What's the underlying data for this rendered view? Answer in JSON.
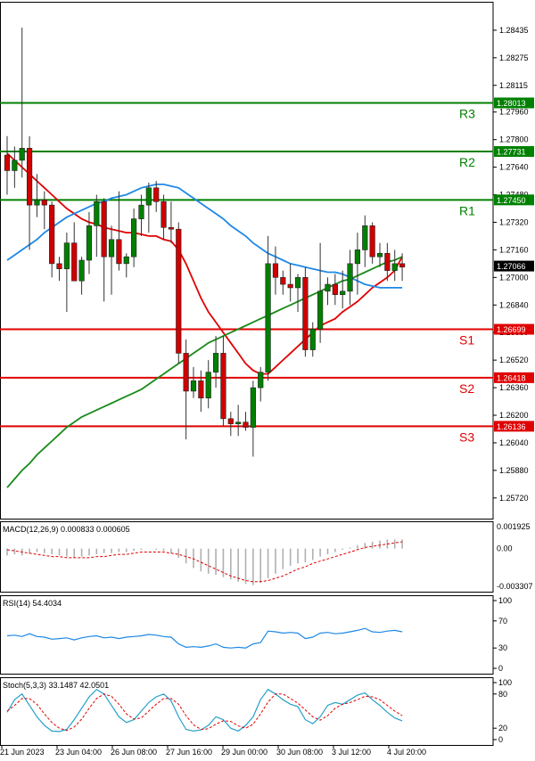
{
  "chart_data": {
    "type": "candlestick",
    "price_axis": {
      "ylim": [
        1.256,
        1.286
      ],
      "ticks": [
        "1.28435",
        "1.28275",
        "1.28115",
        "1.27960",
        "1.27800",
        "1.27640",
        "1.27480",
        "1.27320",
        "1.27160",
        "1.27000",
        "1.26840",
        "1.26680",
        "1.26520",
        "1.26360",
        "1.26200",
        "1.26040",
        "1.25880",
        "1.25720"
      ],
      "current_price": "1.27066"
    },
    "levels": [
      {
        "name": "R3",
        "value": 1.28013,
        "label": "1.28013",
        "color": "#008000"
      },
      {
        "name": "R2",
        "value": 1.27731,
        "label": "1.27731",
        "color": "#008000"
      },
      {
        "name": "R1",
        "value": 1.2745,
        "label": "1.27450",
        "color": "#008000"
      },
      {
        "name": "S1",
        "value": 1.26699,
        "label": "1.26699",
        "color": "#e00000"
      },
      {
        "name": "S2",
        "value": 1.26418,
        "label": "1.26418",
        "color": "#e00000"
      },
      {
        "name": "S3",
        "value": 1.26136,
        "label": "1.26136",
        "color": "#e00000"
      }
    ],
    "candles": [
      {
        "o": 1.2771,
        "h": 1.2782,
        "l": 1.2748,
        "c": 1.2762
      },
      {
        "o": 1.2762,
        "h": 1.2776,
        "l": 1.2752,
        "c": 1.2768
      },
      {
        "o": 1.2768,
        "h": 1.2845,
        "l": 1.2758,
        "c": 1.2775
      },
      {
        "o": 1.2775,
        "h": 1.2782,
        "l": 1.2716,
        "c": 1.2742
      },
      {
        "o": 1.2742,
        "h": 1.276,
        "l": 1.2735,
        "c": 1.2745
      },
      {
        "o": 1.2745,
        "h": 1.275,
        "l": 1.2728,
        "c": 1.2742
      },
      {
        "o": 1.2742,
        "h": 1.2744,
        "l": 1.27,
        "c": 1.2708
      },
      {
        "o": 1.2708,
        "h": 1.2712,
        "l": 1.2698,
        "c": 1.2705
      },
      {
        "o": 1.2705,
        "h": 1.2726,
        "l": 1.268,
        "c": 1.272
      },
      {
        "o": 1.272,
        "h": 1.2732,
        "l": 1.27,
        "c": 1.2698
      },
      {
        "o": 1.2698,
        "h": 1.2712,
        "l": 1.269,
        "c": 1.271
      },
      {
        "o": 1.271,
        "h": 1.2738,
        "l": 1.2702,
        "c": 1.273
      },
      {
        "o": 1.273,
        "h": 1.2748,
        "l": 1.2712,
        "c": 1.2744
      },
      {
        "o": 1.2744,
        "h": 1.2746,
        "l": 1.2686,
        "c": 1.2712
      },
      {
        "o": 1.2712,
        "h": 1.273,
        "l": 1.269,
        "c": 1.2722
      },
      {
        "o": 1.2722,
        "h": 1.275,
        "l": 1.2704,
        "c": 1.2708
      },
      {
        "o": 1.2708,
        "h": 1.2714,
        "l": 1.27,
        "c": 1.2712
      },
      {
        "o": 1.2712,
        "h": 1.274,
        "l": 1.2706,
        "c": 1.2734
      },
      {
        "o": 1.2734,
        "h": 1.2748,
        "l": 1.2724,
        "c": 1.2742
      },
      {
        "o": 1.2742,
        "h": 1.2755,
        "l": 1.2726,
        "c": 1.2752
      },
      {
        "o": 1.2752,
        "h": 1.2756,
        "l": 1.2738,
        "c": 1.2744
      },
      {
        "o": 1.2744,
        "h": 1.2748,
        "l": 1.2722,
        "c": 1.2729
      },
      {
        "o": 1.2729,
        "h": 1.2744,
        "l": 1.272,
        "c": 1.2728
      },
      {
        "o": 1.2728,
        "h": 1.2732,
        "l": 1.265,
        "c": 1.2656
      },
      {
        "o": 1.2656,
        "h": 1.2664,
        "l": 1.2606,
        "c": 1.2634
      },
      {
        "o": 1.2634,
        "h": 1.2648,
        "l": 1.263,
        "c": 1.264
      },
      {
        "o": 1.264,
        "h": 1.2646,
        "l": 1.2622,
        "c": 1.263
      },
      {
        "o": 1.263,
        "h": 1.2652,
        "l": 1.2624,
        "c": 1.2645
      },
      {
        "o": 1.2645,
        "h": 1.2666,
        "l": 1.2636,
        "c": 1.2656
      },
      {
        "o": 1.2656,
        "h": 1.2666,
        "l": 1.2614,
        "c": 1.2618
      },
      {
        "o": 1.2618,
        "h": 1.2622,
        "l": 1.2608,
        "c": 1.2615
      },
      {
        "o": 1.2615,
        "h": 1.2626,
        "l": 1.2608,
        "c": 1.2616
      },
      {
        "o": 1.2616,
        "h": 1.2622,
        "l": 1.2611,
        "c": 1.2613
      },
      {
        "o": 1.2613,
        "h": 1.264,
        "l": 1.2596,
        "c": 1.2636
      },
      {
        "o": 1.2636,
        "h": 1.2648,
        "l": 1.2628,
        "c": 1.2645
      },
      {
        "o": 1.2645,
        "h": 1.2724,
        "l": 1.264,
        "c": 1.2708
      },
      {
        "o": 1.2708,
        "h": 1.2718,
        "l": 1.269,
        "c": 1.27
      },
      {
        "o": 1.27,
        "h": 1.2704,
        "l": 1.269,
        "c": 1.2696
      },
      {
        "o": 1.2696,
        "h": 1.2708,
        "l": 1.2686,
        "c": 1.2694
      },
      {
        "o": 1.2694,
        "h": 1.2702,
        "l": 1.268,
        "c": 1.27
      },
      {
        "o": 1.27,
        "h": 1.2706,
        "l": 1.2654,
        "c": 1.2658
      },
      {
        "o": 1.2658,
        "h": 1.2674,
        "l": 1.2654,
        "c": 1.267
      },
      {
        "o": 1.267,
        "h": 1.272,
        "l": 1.2662,
        "c": 1.2692
      },
      {
        "o": 1.2692,
        "h": 1.27,
        "l": 1.2684,
        "c": 1.2696
      },
      {
        "o": 1.2696,
        "h": 1.2702,
        "l": 1.2684,
        "c": 1.269
      },
      {
        "o": 1.269,
        "h": 1.2704,
        "l": 1.2682,
        "c": 1.2692
      },
      {
        "o": 1.2692,
        "h": 1.2716,
        "l": 1.2684,
        "c": 1.2708
      },
      {
        "o": 1.2708,
        "h": 1.2726,
        "l": 1.269,
        "c": 1.2716
      },
      {
        "o": 1.2716,
        "h": 1.2736,
        "l": 1.2706,
        "c": 1.273
      },
      {
        "o": 1.273,
        "h": 1.2732,
        "l": 1.2708,
        "c": 1.2712
      },
      {
        "o": 1.2712,
        "h": 1.272,
        "l": 1.2706,
        "c": 1.2714
      },
      {
        "o": 1.2714,
        "h": 1.272,
        "l": 1.2698,
        "c": 1.2704
      },
      {
        "o": 1.2704,
        "h": 1.2716,
        "l": 1.2698,
        "c": 1.2708
      },
      {
        "o": 1.2708,
        "h": 1.2714,
        "l": 1.2698,
        "c": 1.2706
      }
    ],
    "moving_averages": [
      {
        "color": "#e00000",
        "values": [
          1.2772,
          1.2768,
          1.2764,
          1.276,
          1.2756,
          1.2752,
          1.2748,
          1.2744,
          1.274,
          1.2737,
          1.2734,
          1.2732,
          1.2731,
          1.2729,
          1.2728,
          1.2727,
          1.2726,
          1.2726,
          1.2725,
          1.2724,
          1.2724,
          1.2722,
          1.2721,
          1.2716,
          1.2708,
          1.2698,
          1.2688,
          1.268,
          1.2674,
          1.2668,
          1.2662,
          1.2656,
          1.265,
          1.2646,
          1.2644,
          1.2644,
          1.2648,
          1.2652,
          1.2656,
          1.266,
          1.2664,
          1.2668,
          1.2672,
          1.2674,
          1.2676,
          1.268,
          1.2683,
          1.2686,
          1.269,
          1.2694,
          1.2697,
          1.27,
          1.2704,
          1.2712
        ]
      },
      {
        "color": "#1e88e5",
        "values": [
          1.271,
          1.2713,
          1.2716,
          1.2719,
          1.2722,
          1.2726,
          1.2729,
          1.2732,
          1.2735,
          1.2737,
          1.2739,
          1.2741,
          1.2743,
          1.2744,
          1.2746,
          1.2747,
          1.2748,
          1.275,
          1.2752,
          1.2753,
          1.2754,
          1.2754,
          1.2753,
          1.2752,
          1.2749,
          1.2746,
          1.2743,
          1.274,
          1.2737,
          1.2734,
          1.273,
          1.2727,
          1.2724,
          1.272,
          1.2717,
          1.2714,
          1.2712,
          1.271,
          1.2708,
          1.2707,
          1.2706,
          1.2705,
          1.2704,
          1.2703,
          1.2703,
          1.2702,
          1.27,
          1.2698,
          1.2696,
          1.2695,
          1.2694,
          1.2694,
          1.2694,
          1.2694
        ]
      },
      {
        "color": "#1a8a1a",
        "values": [
          1.2578,
          1.2583,
          1.2588,
          1.2592,
          1.2597,
          1.2601,
          1.2605,
          1.2609,
          1.2613,
          1.2616,
          1.2619,
          1.2621,
          1.2623,
          1.2625,
          1.2627,
          1.2629,
          1.2631,
          1.2633,
          1.2635,
          1.2638,
          1.2641,
          1.2644,
          1.2647,
          1.265,
          1.2653,
          1.2656,
          1.2659,
          1.2662,
          1.2664,
          1.2666,
          1.2668,
          1.267,
          1.2672,
          1.2674,
          1.2676,
          1.2678,
          1.268,
          1.2682,
          1.2684,
          1.2686,
          1.2688,
          1.269,
          1.2692,
          1.2694,
          1.2696,
          1.2698,
          1.2699,
          1.2701,
          1.2703,
          1.2705,
          1.2707,
          1.2709,
          1.271,
          1.2712
        ]
      }
    ],
    "x_labels": [
      "21 Jun 2023",
      "23 Jun 04:00",
      "26 Jun 08:00",
      "27 Jun 16:00",
      "29 Jun 00:00",
      "30 Jun 08:00",
      "3 Jul 12:00",
      "4 Jul 20:00"
    ],
    "macd": {
      "label": "MACD(12,26,9) 0.000833 0.000605",
      "ylim": [
        -0.003307,
        0.001925
      ],
      "ticks": [
        "0.001925",
        "0.00",
        "-0.003307"
      ],
      "histogram": [
        -0.0006,
        -0.0005,
        -0.0006,
        -0.0004,
        -0.0003,
        -0.0004,
        -0.0005,
        -0.0006,
        -0.0007,
        -0.0008,
        -0.0007,
        -0.0006,
        -0.0005,
        -0.0004,
        -0.0004,
        -0.0003,
        -0.0003,
        -0.0002,
        -0.0001,
        0.0,
        -0.0001,
        -0.0002,
        -0.0004,
        -0.0008,
        -0.0013,
        -0.0017,
        -0.002,
        -0.0022,
        -0.0023,
        -0.0025,
        -0.0027,
        -0.0029,
        -0.0031,
        -0.0032,
        -0.003,
        -0.0026,
        -0.0022,
        -0.0018,
        -0.0015,
        -0.0013,
        -0.0012,
        -0.001,
        -0.0007,
        -0.0005,
        -0.0003,
        -0.0001,
        0.0001,
        0.0003,
        0.0005,
        0.0006,
        0.0007,
        0.0008,
        0.0008,
        0.0008
      ],
      "signal": [
        -0.0001,
        -0.0002,
        -0.0003,
        -0.0004,
        -0.0005,
        -0.0006,
        -0.0007,
        -0.0007,
        -0.0008,
        -0.0008,
        -0.0008,
        -0.0008,
        -0.0007,
        -0.0007,
        -0.0006,
        -0.0005,
        -0.0005,
        -0.0004,
        -0.0003,
        -0.0003,
        -0.0003,
        -0.0003,
        -0.0004,
        -0.0005,
        -0.0007,
        -0.0009,
        -0.0012,
        -0.0015,
        -0.0018,
        -0.0021,
        -0.0024,
        -0.0026,
        -0.0028,
        -0.0029,
        -0.0029,
        -0.0028,
        -0.0026,
        -0.0024,
        -0.0021,
        -0.0018,
        -0.0016,
        -0.0013,
        -0.0011,
        -0.0009,
        -0.0007,
        -0.0005,
        -0.0003,
        -0.0001,
        0.0001,
        0.0002,
        0.0003,
        0.0004,
        0.0005,
        0.0006
      ]
    },
    "rsi": {
      "label": "RSI(14) 54.4034",
      "ylim": [
        0,
        100
      ],
      "ticks": [
        "100",
        "70",
        "30",
        "0"
      ],
      "values": [
        48,
        49,
        47,
        51,
        47,
        46,
        43,
        44,
        45,
        42,
        45,
        47,
        48,
        45,
        46,
        44,
        46,
        47,
        48,
        50,
        49,
        47,
        46,
        36,
        31,
        32,
        31,
        33,
        36,
        31,
        30,
        31,
        30,
        36,
        38,
        55,
        54,
        52,
        53,
        52,
        44,
        46,
        52,
        53,
        51,
        52,
        54,
        56,
        59,
        54,
        53,
        55,
        56,
        54
      ]
    },
    "stoch": {
      "label": "Stoch(5,3,3) 33.1487 42.0501",
      "ylim": [
        0,
        100
      ],
      "ticks": [
        "100",
        "80",
        "20",
        "0"
      ],
      "k": [
        48,
        70,
        80,
        60,
        40,
        25,
        15,
        14,
        18,
        35,
        55,
        75,
        88,
        80,
        60,
        40,
        30,
        35,
        50,
        65,
        75,
        80,
        68,
        40,
        18,
        15,
        17,
        25,
        40,
        35,
        20,
        15,
        25,
        40,
        70,
        88,
        80,
        70,
        62,
        58,
        35,
        28,
        40,
        60,
        65,
        62,
        70,
        78,
        82,
        70,
        60,
        48,
        38,
        33
      ],
      "d": [
        50,
        60,
        72,
        72,
        62,
        45,
        30,
        20,
        16,
        22,
        36,
        55,
        72,
        80,
        76,
        62,
        45,
        36,
        38,
        50,
        62,
        72,
        72,
        62,
        42,
        26,
        18,
        19,
        27,
        33,
        32,
        24,
        20,
        27,
        45,
        66,
        80,
        80,
        72,
        64,
        52,
        40,
        34,
        42,
        55,
        62,
        65,
        70,
        76,
        75,
        70,
        60,
        50,
        42
      ]
    }
  }
}
